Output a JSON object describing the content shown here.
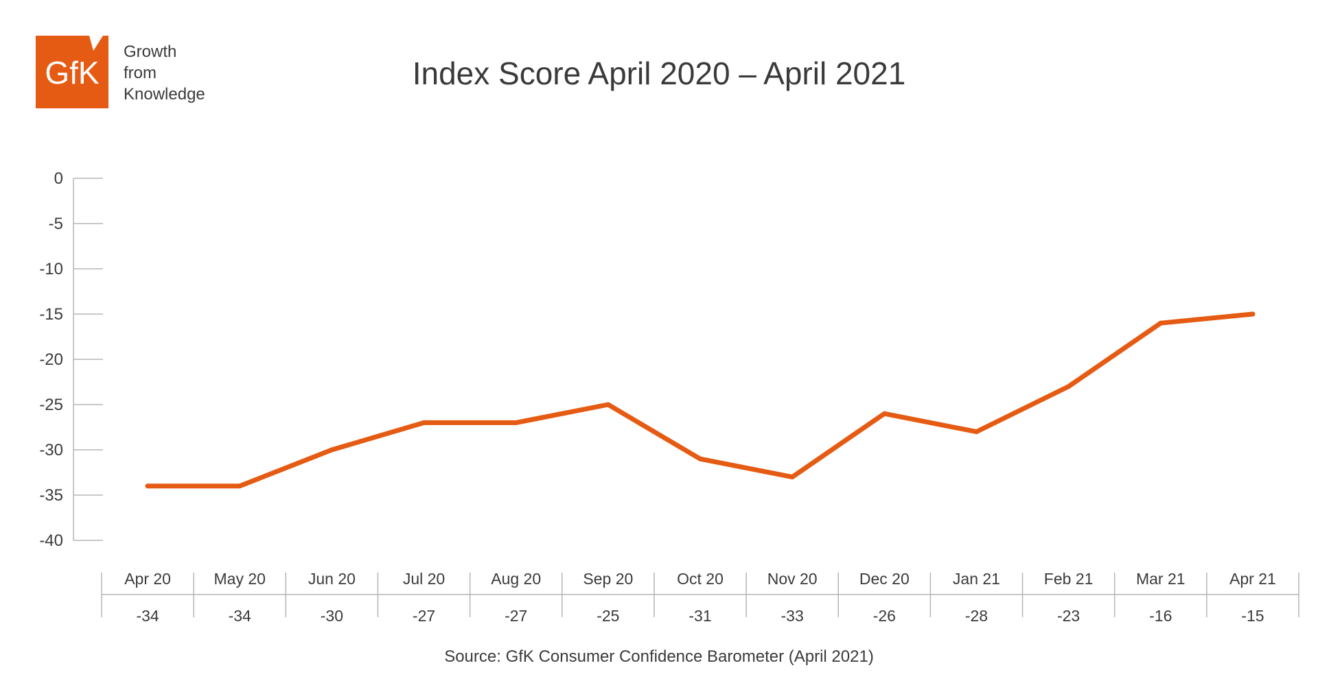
{
  "brand": {
    "logo_text": "GfK",
    "tagline": [
      "Growth",
      "from",
      "Knowledge"
    ],
    "color": "#e55b13"
  },
  "chart_data": {
    "type": "line",
    "title": "Index Score April 2020 – April 2021",
    "source": "Source: GfK Consumer Confidence Barometer (April 2021)",
    "categories": [
      "Apr 20",
      "May 20",
      "Jun 20",
      "Jul 20",
      "Aug 20",
      "Sep 20",
      "Oct 20",
      "Nov 20",
      "Dec 20",
      "Jan 21",
      "Feb 21",
      "Mar 21",
      "Apr 21"
    ],
    "series": [
      {
        "values": [
          -34,
          -34,
          -30,
          -27,
          -27,
          -25,
          -31,
          -33,
          -26,
          -28,
          -23,
          -16,
          -15
        ],
        "color": "#e55b13"
      }
    ],
    "ylim": [
      -40,
      0
    ],
    "yticks": [
      0,
      -5,
      -10,
      -15,
      -20,
      -25,
      -30,
      -35,
      -40
    ],
    "data_table": true,
    "grid": false,
    "legend": "none"
  }
}
